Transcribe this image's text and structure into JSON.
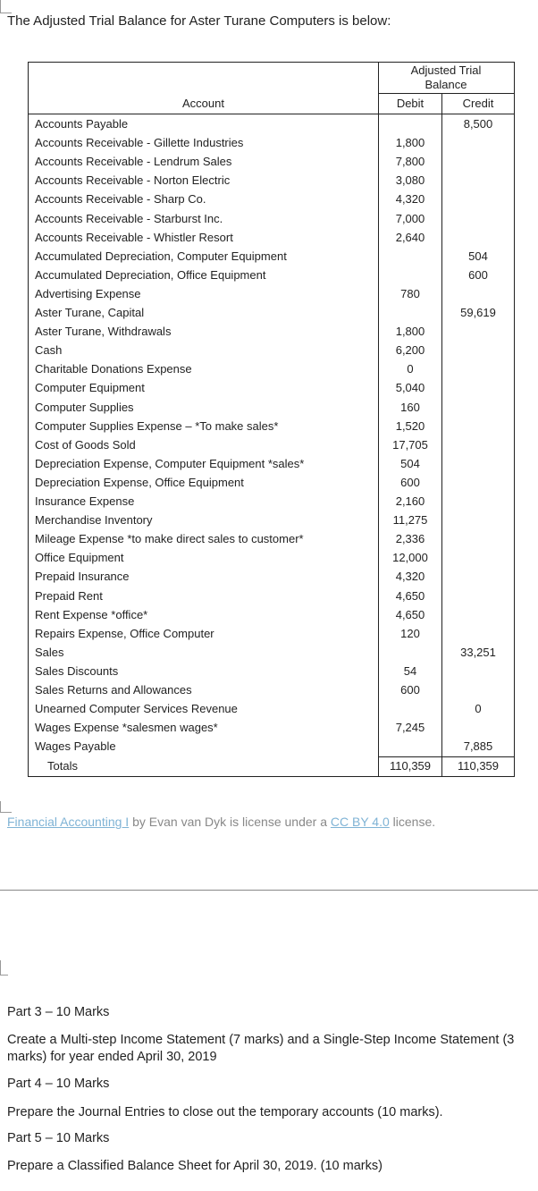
{
  "heading": "The Adjusted Trial Balance for Aster Turane Computers is below:",
  "table": {
    "group_header": "Adjusted Trial Balance",
    "columns": [
      "Account",
      "Debit",
      "Credit"
    ],
    "rows": [
      {
        "account": "Accounts Payable",
        "credit": "8,500"
      },
      {
        "account": "Accounts Receivable - Gillette Industries",
        "debit": "1,800"
      },
      {
        "account": "Accounts Receivable - Lendrum Sales",
        "debit": "7,800"
      },
      {
        "account": "Accounts Receivable - Norton Electric",
        "debit": "3,080"
      },
      {
        "account": "Accounts Receivable - Sharp Co.",
        "debit": "4,320"
      },
      {
        "account": "Accounts Receivable - Starburst Inc.",
        "debit": "7,000"
      },
      {
        "account": "Accounts Receivable - Whistler Resort",
        "debit": "2,640"
      },
      {
        "account": "Accumulated Depreciation, Computer Equipment",
        "credit": "504"
      },
      {
        "account": "Accumulated Depreciation, Office Equipment",
        "credit": "600"
      },
      {
        "account": "Advertising Expense",
        "debit": "780"
      },
      {
        "account": "Aster Turane, Capital",
        "credit": "59,619"
      },
      {
        "account": "Aster Turane, Withdrawals",
        "debit": "1,800"
      },
      {
        "account": "Cash",
        "debit": "6,200"
      },
      {
        "account": "Charitable Donations Expense",
        "debit": "0"
      },
      {
        "account": "Computer Equipment",
        "debit": "5,040"
      },
      {
        "account": "Computer Supplies",
        "debit": "160"
      },
      {
        "account": "Computer Supplies Expense – *To make sales*",
        "debit": "1,520"
      },
      {
        "account": "Cost of Goods Sold",
        "debit": "17,705"
      },
      {
        "account": "Depreciation Expense, Computer Equipment *sales*",
        "debit": "504"
      },
      {
        "account": "Depreciation Expense, Office Equipment",
        "debit": "600"
      },
      {
        "account": "Insurance Expense",
        "debit": "2,160"
      },
      {
        "account": "Merchandise Inventory",
        "debit": "11,275"
      },
      {
        "account": "Mileage Expense *to make direct sales to customer*",
        "debit": "2,336"
      },
      {
        "account": "Office Equipment",
        "debit": "12,000"
      },
      {
        "account": "Prepaid Insurance",
        "debit": "4,320"
      },
      {
        "account": "Prepaid Rent",
        "debit": "4,650"
      },
      {
        "account": "Rent Expense *office*",
        "debit": "4,650"
      },
      {
        "account": "Repairs Expense, Office Computer",
        "debit": "120"
      },
      {
        "account": "Sales",
        "credit": "33,251"
      },
      {
        "account": "Sales Discounts",
        "debit": "54"
      },
      {
        "account": "Sales Returns and Allowances",
        "debit": "600"
      },
      {
        "account": "Unearned Computer Services Revenue",
        "credit": "0"
      },
      {
        "account": "Wages Expense *salesmen wages*",
        "debit": "7,245"
      },
      {
        "account": "Wages Payable",
        "credit": "7,885"
      }
    ],
    "totals": {
      "label": "Totals",
      "debit": "110,359",
      "credit": "110,359"
    }
  },
  "license": {
    "link_text": "Financial Accounting I",
    "middle": " by Evan van Dyk is license under a ",
    "cc_text": "CC BY 4.0",
    "end": " license."
  },
  "parts": [
    {
      "title": "Part 3 – 10 Marks",
      "text": "Create a Multi-step Income Statement (7 marks) and a Single-Step Income Statement (3 marks) for year ended April 30, 2019"
    },
    {
      "title": "Part 4 – 10 Marks",
      "text": "Prepare the Journal Entries to close out the temporary accounts (10 marks)."
    },
    {
      "title": "Part 5 – 10 Marks",
      "text": "Prepare a Classified Balance Sheet for April 30, 2019. (10 marks)"
    }
  ]
}
